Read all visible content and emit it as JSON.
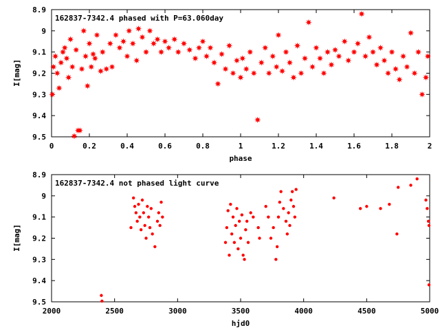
{
  "chart_data": [
    {
      "type": "scatter",
      "title": "162837-7342.4 phased with P=63.060day",
      "xlabel": "phase",
      "ylabel": "I[mag]",
      "xlim": [
        0,
        2
      ],
      "ylim": [
        8.9,
        9.5
      ],
      "y_inverted": true,
      "grid": false,
      "x_ticks": [
        "0",
        "0.2",
        "0.4",
        "0.6",
        "0.8",
        "1",
        "1.2",
        "1.4",
        "1.6",
        "1.8",
        "2"
      ],
      "y_ticks": [
        "8.9",
        "9",
        "9.1",
        "9.2",
        "9.3",
        "9.4",
        "9.5"
      ],
      "marker": "star",
      "color": "#ff0000",
      "series": [
        {
          "values": [
            [
              0.0,
              9.3
            ],
            [
              0.01,
              9.17
            ],
            [
              0.02,
              9.12
            ],
            [
              0.03,
              9.2
            ],
            [
              0.04,
              9.27
            ],
            [
              0.05,
              9.15
            ],
            [
              0.06,
              9.1
            ],
            [
              0.07,
              9.08
            ],
            [
              0.08,
              9.13
            ],
            [
              0.09,
              9.22
            ],
            [
              0.1,
              9.04
            ],
            [
              0.11,
              9.17
            ],
            [
              0.12,
              9.5
            ],
            [
              0.13,
              9.09
            ],
            [
              0.14,
              9.47
            ],
            [
              0.15,
              9.47
            ],
            [
              0.16,
              9.18
            ],
            [
              0.17,
              9.0
            ],
            [
              0.18,
              9.12
            ],
            [
              0.19,
              9.26
            ],
            [
              0.2,
              9.06
            ],
            [
              0.21,
              9.17
            ],
            [
              0.22,
              9.11
            ],
            [
              0.23,
              9.13
            ],
            [
              0.24,
              9.02
            ],
            [
              0.26,
              9.19
            ],
            [
              0.27,
              9.1
            ],
            [
              0.29,
              9.18
            ],
            [
              0.31,
              9.06
            ],
            [
              0.32,
              9.17
            ],
            [
              0.34,
              9.02
            ],
            [
              0.36,
              9.08
            ],
            [
              0.38,
              9.05
            ],
            [
              0.4,
              9.12
            ],
            [
              0.41,
              9.0
            ],
            [
              0.43,
              9.06
            ],
            [
              0.45,
              9.14
            ],
            [
              0.46,
              8.99
            ],
            [
              0.48,
              9.03
            ],
            [
              0.5,
              9.1
            ],
            [
              0.52,
              9.0
            ],
            [
              0.54,
              9.06
            ],
            [
              0.56,
              9.04
            ],
            [
              0.58,
              9.1
            ],
            [
              0.6,
              9.05
            ],
            [
              0.62,
              9.08
            ],
            [
              0.65,
              9.04
            ],
            [
              0.67,
              9.1
            ],
            [
              0.7,
              9.06
            ],
            [
              0.73,
              9.09
            ],
            [
              0.76,
              9.13
            ],
            [
              0.78,
              9.08
            ],
            [
              0.8,
              9.05
            ],
            [
              0.82,
              9.12
            ],
            [
              0.84,
              9.08
            ],
            [
              0.86,
              9.15
            ],
            [
              0.88,
              9.25
            ],
            [
              0.9,
              9.11
            ],
            [
              0.92,
              9.18
            ],
            [
              0.94,
              9.07
            ],
            [
              0.96,
              9.2
            ],
            [
              0.98,
              9.14
            ],
            [
              1.0,
              9.22
            ],
            [
              1.01,
              9.13
            ],
            [
              1.03,
              9.18
            ],
            [
              1.05,
              9.1
            ],
            [
              1.07,
              9.2
            ],
            [
              1.09,
              9.42
            ],
            [
              1.11,
              9.15
            ],
            [
              1.13,
              9.08
            ],
            [
              1.15,
              9.2
            ],
            [
              1.17,
              9.12
            ],
            [
              1.19,
              9.17
            ],
            [
              1.2,
              9.02
            ],
            [
              1.22,
              9.19
            ],
            [
              1.24,
              9.1
            ],
            [
              1.26,
              9.15
            ],
            [
              1.28,
              9.22
            ],
            [
              1.3,
              9.07
            ],
            [
              1.32,
              9.2
            ],
            [
              1.34,
              9.13
            ],
            [
              1.36,
              8.96
            ],
            [
              1.38,
              9.17
            ],
            [
              1.4,
              9.08
            ],
            [
              1.42,
              9.13
            ],
            [
              1.44,
              9.2
            ],
            [
              1.46,
              9.1
            ],
            [
              1.48,
              9.16
            ],
            [
              1.5,
              9.09
            ],
            [
              1.52,
              9.12
            ],
            [
              1.55,
              9.05
            ],
            [
              1.57,
              9.14
            ],
            [
              1.6,
              9.1
            ],
            [
              1.62,
              9.06
            ],
            [
              1.64,
              8.92
            ],
            [
              1.66,
              9.12
            ],
            [
              1.68,
              9.03
            ],
            [
              1.7,
              9.1
            ],
            [
              1.72,
              9.16
            ],
            [
              1.74,
              9.08
            ],
            [
              1.76,
              9.14
            ],
            [
              1.78,
              9.2
            ],
            [
              1.8,
              9.1
            ],
            [
              1.82,
              9.18
            ],
            [
              1.84,
              9.23
            ],
            [
              1.86,
              9.12
            ],
            [
              1.88,
              9.17
            ],
            [
              1.9,
              9.01
            ],
            [
              1.92,
              9.2
            ],
            [
              1.94,
              9.1
            ],
            [
              1.96,
              9.3
            ],
            [
              1.98,
              9.22
            ],
            [
              1.99,
              9.12
            ]
          ]
        }
      ]
    },
    {
      "type": "scatter",
      "title": "162837-7342.4 not phased light curve",
      "xlabel": "hjd0",
      "ylabel": "I[mag]",
      "xlim": [
        2000,
        5000
      ],
      "ylim": [
        8.9,
        9.5
      ],
      "y_inverted": true,
      "grid": false,
      "x_ticks": [
        "2000",
        "2500",
        "3000",
        "3500",
        "4000",
        "4500",
        "5000"
      ],
      "y_ticks": [
        "8.9",
        "9",
        "9.1",
        "9.2",
        "9.3",
        "9.4",
        "9.5"
      ],
      "marker": "dot",
      "color": "#ff0000",
      "series": [
        {
          "values": [
            [
              2395,
              9.47
            ],
            [
              2400,
              9.5
            ],
            [
              2630,
              9.15
            ],
            [
              2650,
              9.01
            ],
            [
              2660,
              9.05
            ],
            [
              2670,
              9.08
            ],
            [
              2680,
              9.12
            ],
            [
              2690,
              9.04
            ],
            [
              2700,
              9.1
            ],
            [
              2710,
              9.16
            ],
            [
              2720,
              9.02
            ],
            [
              2730,
              9.08
            ],
            [
              2740,
              9.14
            ],
            [
              2750,
              9.2
            ],
            [
              2760,
              9.05
            ],
            [
              2770,
              9.1
            ],
            [
              2780,
              9.15
            ],
            [
              2790,
              9.06
            ],
            [
              2800,
              9.18
            ],
            [
              2820,
              9.24
            ],
            [
              2840,
              9.12
            ],
            [
              2850,
              9.08
            ],
            [
              2860,
              9.14
            ],
            [
              2870,
              9.03
            ],
            [
              2880,
              9.1
            ],
            [
              3380,
              9.22
            ],
            [
              3390,
              9.15
            ],
            [
              3400,
              9.07
            ],
            [
              3410,
              9.28
            ],
            [
              3420,
              9.04
            ],
            [
              3430,
              9.18
            ],
            [
              3440,
              9.1
            ],
            [
              3450,
              9.22
            ],
            [
              3460,
              9.14
            ],
            [
              3470,
              9.06
            ],
            [
              3480,
              9.25
            ],
            [
              3490,
              9.12
            ],
            [
              3500,
              9.2
            ],
            [
              3510,
              9.09
            ],
            [
              3520,
              9.28
            ],
            [
              3530,
              9.3
            ],
            [
              3540,
              9.16
            ],
            [
              3550,
              9.12
            ],
            [
              3560,
              9.22
            ],
            [
              3580,
              9.08
            ],
            [
              3600,
              9.1
            ],
            [
              3640,
              9.15
            ],
            [
              3650,
              9.2
            ],
            [
              3700,
              9.05
            ],
            [
              3720,
              9.1
            ],
            [
              3740,
              9.2
            ],
            [
              3760,
              9.15
            ],
            [
              3780,
              9.3
            ],
            [
              3790,
              9.24
            ],
            [
              3800,
              9.1
            ],
            [
              3810,
              9.03
            ],
            [
              3820,
              8.98
            ],
            [
              3840,
              9.06
            ],
            [
              3860,
              9.12
            ],
            [
              3870,
              9.18
            ],
            [
              3880,
              9.08
            ],
            [
              3890,
              9.14
            ],
            [
              3900,
              9.02
            ],
            [
              3910,
              8.98
            ],
            [
              3920,
              9.05
            ],
            [
              3930,
              9.1
            ],
            [
              3940,
              8.97
            ],
            [
              4240,
              9.01
            ],
            [
              4450,
              9.06
            ],
            [
              4500,
              9.05
            ],
            [
              4610,
              9.06
            ],
            [
              4680,
              9.04
            ],
            [
              4740,
              9.18
            ],
            [
              4750,
              8.96
            ],
            [
              4850,
              8.95
            ],
            [
              4900,
              8.92
            ],
            [
              4970,
              9.02
            ],
            [
              4980,
              9.06
            ],
            [
              4990,
              9.12
            ],
            [
              5000,
              9.14
            ],
            [
              5000,
              9.42
            ]
          ]
        }
      ]
    }
  ]
}
